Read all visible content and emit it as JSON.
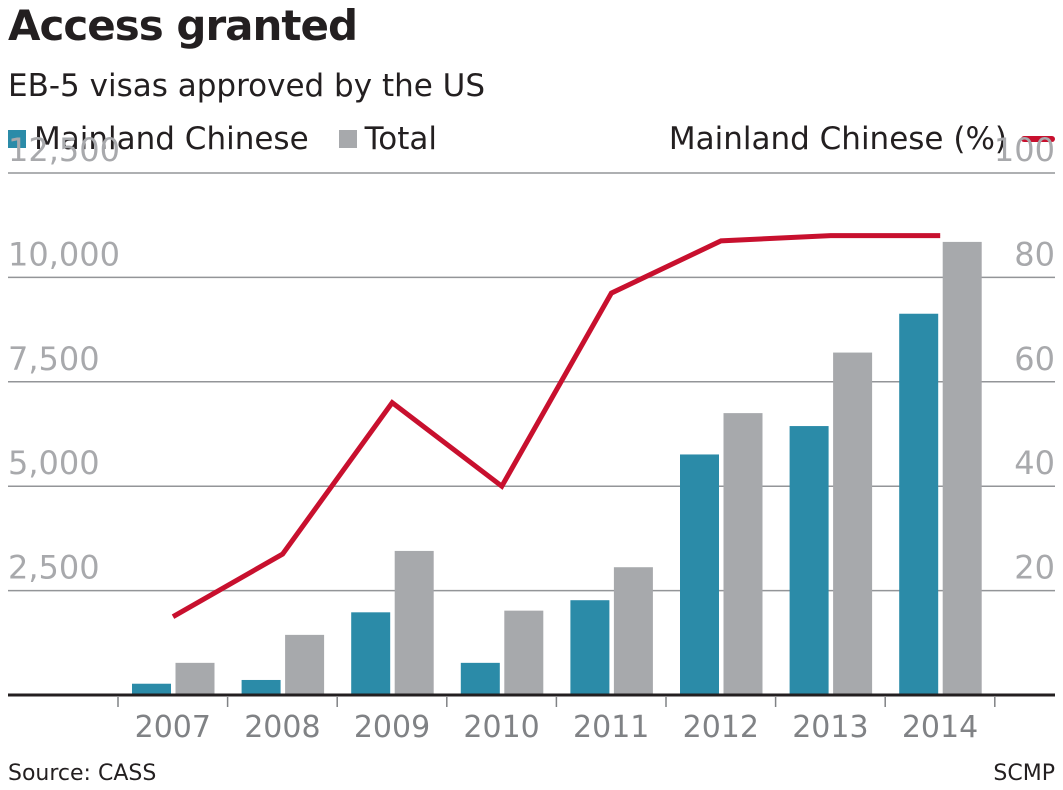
{
  "header": {
    "title": "Access granted",
    "subtitle": "EB-5 visas approved by the US"
  },
  "legend": {
    "items": [
      {
        "label": "Mainland Chinese",
        "color": "#2b8ba8"
      },
      {
        "label": "Total",
        "color": "#a7a9ac"
      }
    ],
    "line_label": "Mainland Chinese (%)",
    "line_color": "#c8102e"
  },
  "footer": {
    "source": "Source: CASS",
    "credit": "SCMP"
  },
  "chart_data": {
    "type": "bar",
    "categories": [
      "2007",
      "2008",
      "2009",
      "2010",
      "2011",
      "2012",
      "2013",
      "2014"
    ],
    "series": [
      {
        "name": "Mainland Chinese",
        "type": "bar",
        "axis": "left",
        "color": "#2b8ba8",
        "values": [
          270,
          360,
          1980,
          770,
          2270,
          5760,
          6440,
          9130
        ]
      },
      {
        "name": "Total",
        "type": "bar",
        "axis": "left",
        "color": "#a7a9ac",
        "values": [
          770,
          1440,
          3450,
          2020,
          3060,
          6750,
          8200,
          10850
        ]
      },
      {
        "name": "Mainland Chinese (%)",
        "type": "line",
        "axis": "right",
        "color": "#c8102e",
        "values": [
          15,
          27,
          56,
          40,
          77,
          87,
          88,
          88
        ]
      }
    ],
    "y_left": {
      "ticks": [
        "2,500",
        "5,000",
        "7,500",
        "10,000",
        "12,500"
      ],
      "tick_values": [
        2500,
        5000,
        7500,
        10000,
        12500
      ],
      "ylim": [
        0,
        12500
      ]
    },
    "y_right": {
      "ticks": [
        "20",
        "40",
        "60",
        "80",
        "100"
      ],
      "tick_values": [
        20,
        40,
        60,
        80,
        100
      ],
      "ylim": [
        0,
        100
      ]
    },
    "grid": true
  }
}
